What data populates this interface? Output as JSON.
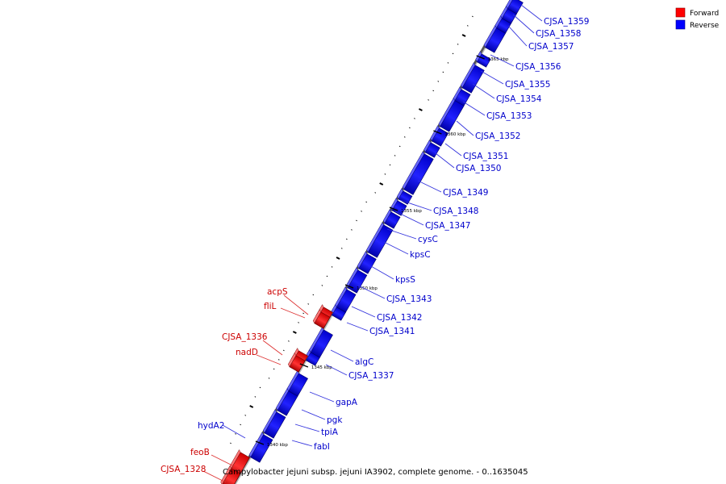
{
  "caption": "Campylobacter jejuni subsp. jejuni IA3902, complete genome. - 0..1635045",
  "legend": [
    {
      "label": "Forward",
      "color": "#ff0000"
    },
    {
      "label": "Reverse",
      "color": "#0000ff"
    }
  ],
  "colors": {
    "forward": "#ff0000",
    "reverse": "#0000ff",
    "backbone": "#999999"
  },
  "ticks": [
    "1340 kbp",
    "1345 kbp",
    "1350 kbp",
    "1355 kbp",
    "1360 kbp",
    "1365 kbp"
  ],
  "reverse_genes": [
    "CJSA_1359",
    "CJSA_1358",
    "CJSA_1357",
    "CJSA_1356",
    "CJSA_1355",
    "CJSA_1354",
    "CJSA_1353",
    "CJSA_1352",
    "CJSA_1351",
    "CJSA_1350",
    "CJSA_1349",
    "CJSA_1348",
    "CJSA_1347",
    "cysC",
    "kpsC",
    "kpsS",
    "CJSA_1343",
    "CJSA_1342",
    "CJSA_1341",
    "algC",
    "CJSA_1337",
    "gapA",
    "pgk",
    "tpiA",
    "fabI",
    "hydA2"
  ],
  "forward_genes": [
    "acpS",
    "fliL",
    "CJSA_1336",
    "nadD",
    "feoB",
    "CJSA_1328"
  ]
}
